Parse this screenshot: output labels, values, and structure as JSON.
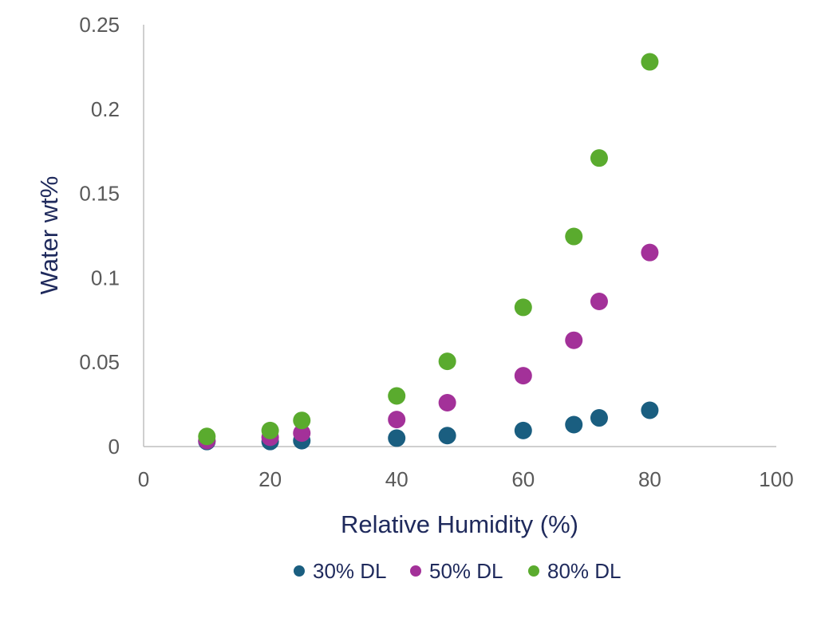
{
  "chart_data": {
    "type": "scatter",
    "title": "",
    "xlabel": "Relative Humidity (%)",
    "ylabel": "Water wt%",
    "xlim": [
      0,
      100
    ],
    "ylim": [
      0,
      0.25
    ],
    "xticks": [
      "0",
      "20",
      "40",
      "60",
      "80",
      "100"
    ],
    "yticks": [
      "0",
      "0.05",
      "0.1",
      "0.15",
      "0.2",
      "0.25"
    ],
    "grid": false,
    "legend_position": "bottom",
    "series": [
      {
        "name": "30% DL",
        "color": "#1a5e80",
        "points": [
          {
            "x": 10,
            "y": 0.003
          },
          {
            "x": 20,
            "y": 0.003
          },
          {
            "x": 25,
            "y": 0.0035
          },
          {
            "x": 40,
            "y": 0.005
          },
          {
            "x": 48,
            "y": 0.0065
          },
          {
            "x": 60,
            "y": 0.0095
          },
          {
            "x": 68,
            "y": 0.013
          },
          {
            "x": 72,
            "y": 0.017
          },
          {
            "x": 80,
            "y": 0.0215
          }
        ]
      },
      {
        "name": "50% DL",
        "color": "#a33199",
        "points": [
          {
            "x": 10,
            "y": 0.0035
          },
          {
            "x": 20,
            "y": 0.0055
          },
          {
            "x": 25,
            "y": 0.008
          },
          {
            "x": 40,
            "y": 0.016
          },
          {
            "x": 48,
            "y": 0.026
          },
          {
            "x": 60,
            "y": 0.042
          },
          {
            "x": 68,
            "y": 0.063
          },
          {
            "x": 72,
            "y": 0.086
          },
          {
            "x": 80,
            "y": 0.115
          }
        ]
      },
      {
        "name": "80% DL",
        "color": "#5aab2e",
        "points": [
          {
            "x": 10,
            "y": 0.006
          },
          {
            "x": 20,
            "y": 0.0095
          },
          {
            "x": 25,
            "y": 0.0155
          },
          {
            "x": 40,
            "y": 0.03
          },
          {
            "x": 48,
            "y": 0.0505
          },
          {
            "x": 60,
            "y": 0.0825
          },
          {
            "x": 68,
            "y": 0.1245
          },
          {
            "x": 72,
            "y": 0.171
          },
          {
            "x": 80,
            "y": 0.228
          }
        ]
      }
    ]
  }
}
